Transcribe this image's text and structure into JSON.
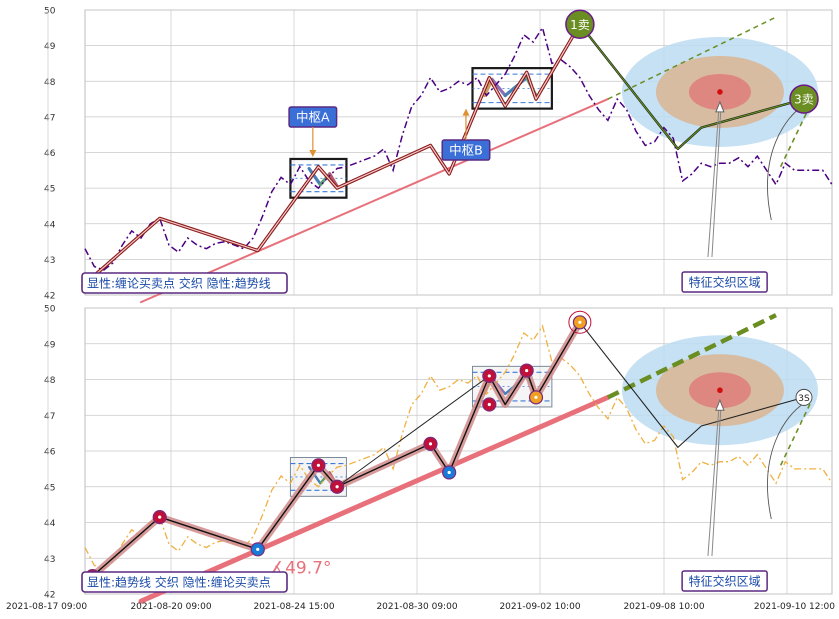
{
  "chart_data": {
    "type": "line",
    "x_ticks": [
      "2021-08-17 09:00",
      "2021-08-20 09:00",
      "2021-08-24 15:00",
      "2021-08-30 09:00",
      "2021-09-02 10:00",
      "2021-09-08 10:00",
      "2021-09-10 12:00"
    ],
    "y_ticks": [
      42,
      43,
      44,
      45,
      46,
      47,
      48,
      49,
      50
    ],
    "ylim": [
      42,
      50
    ],
    "grid": true,
    "panels": [
      {
        "legend_text": "显性:缠论买卖点 交织 隐性:趋势线",
        "pivot_labels": [
          "中枢A",
          "中枢B"
        ],
        "signal_labels": [
          "1卖",
          "3卖"
        ],
        "region_label": "特征交织区域"
      },
      {
        "legend_text": "显性:趋势线 交织 隐性:缠论买卖点",
        "angle_label": "∡49.7°",
        "signal_labels": [
          "3S"
        ],
        "region_label": "特征交织区域"
      }
    ],
    "price_series": {
      "x_index": [
        0,
        1,
        2,
        3,
        4,
        5,
        6,
        7,
        8,
        9,
        10,
        11,
        12,
        13,
        14,
        15,
        16,
        17,
        18,
        19,
        20,
        21,
        22,
        23,
        24,
        25,
        26,
        27,
        28,
        29,
        30,
        31,
        32,
        33,
        34,
        35,
        36,
        37,
        38,
        39,
        40,
        41,
        42,
        43,
        44,
        45,
        46,
        47,
        48,
        49,
        50,
        51,
        52,
        53,
        54,
        55,
        56,
        57,
        58,
        59,
        60,
        61,
        62,
        63,
        64,
        65,
        66,
        67,
        68,
        69,
        70,
        71,
        72,
        73,
        74,
        75,
        76,
        77,
        78,
        79,
        80
      ],
      "values": [
        43.3,
        42.8,
        42.7,
        42.9,
        43.4,
        43.8,
        43.6,
        44.0,
        44.15,
        43.4,
        43.2,
        43.6,
        43.4,
        43.3,
        43.45,
        43.5,
        43.4,
        43.3,
        43.6,
        44.2,
        44.9,
        45.3,
        45.1,
        45.6,
        45.2,
        45.0,
        45.3,
        45.55,
        45.6,
        45.7,
        45.8,
        45.9,
        46.1,
        45.5,
        46.5,
        47.3,
        47.6,
        48.1,
        47.7,
        47.8,
        48.0,
        47.9,
        48.1,
        47.6,
        47.9,
        48.2,
        48.7,
        49.3,
        49.1,
        49.5,
        48.5,
        48.6,
        48.4,
        48.1,
        47.6,
        47.2,
        46.9,
        47.5,
        47.2,
        46.6,
        46.2,
        46.3,
        46.7,
        46.4,
        45.2,
        45.4,
        45.7,
        45.6,
        45.7,
        45.7,
        45.85,
        45.6,
        45.9,
        45.5,
        45.1,
        45.7,
        45.5,
        45.5,
        45.5,
        45.5,
        45.1
      ]
    },
    "stroke_points": [
      {
        "x": 0.8,
        "y": 42.5
      },
      {
        "x": 8.0,
        "y": 44.15
      },
      {
        "x": 18.5,
        "y": 43.25
      },
      {
        "x": 25.0,
        "y": 45.6
      },
      {
        "x": 27.0,
        "y": 45.0
      },
      {
        "x": 37.0,
        "y": 46.2
      },
      {
        "x": 39.0,
        "y": 45.4
      },
      {
        "x": 43.3,
        "y": 48.1
      },
      {
        "x": 45.0,
        "y": 47.3
      },
      {
        "x": 47.3,
        "y": 48.25
      },
      {
        "x": 48.3,
        "y": 47.5
      },
      {
        "x": 53.0,
        "y": 49.6
      }
    ],
    "projection_points": [
      {
        "x": 53.0,
        "y": 49.6
      },
      {
        "x": 63.5,
        "y": 46.1
      },
      {
        "x": 66.0,
        "y": 46.7
      },
      {
        "x": 77.0,
        "y": 47.5
      }
    ],
    "pivots": [
      {
        "name": "中枢A",
        "x0": 22.0,
        "x1": 28.0,
        "ymin": 44.9,
        "ymax": 45.65
      },
      {
        "name": "中枢B",
        "x0": 41.5,
        "x1": 50.0,
        "ymin": 47.4,
        "ymax": 48.2
      }
    ],
    "trendline": {
      "x0": 6.0,
      "y0": 41.8,
      "x1": 56.0,
      "y1": 47.5
    },
    "trendline_ext": {
      "x0": 56.0,
      "y0": 47.5,
      "x1": 74.0,
      "y1": 49.8
    },
    "trendline_slope_deg": 49.7,
    "signals": [
      {
        "label": "1卖",
        "x": 53.0,
        "y": 49.6
      },
      {
        "label": "3卖",
        "x": 77.0,
        "y": 47.5
      }
    ],
    "region_center": {
      "x": 68.0,
      "y": 47.7
    },
    "colors": {
      "grid": "#c8c8c8",
      "price_dash_top": "#4b0082",
      "price_dash_bottom": "#f0b040",
      "trend": "#e8707a",
      "stroke_outline": "#8b1a1a",
      "pivot_box": "#1a1a1a",
      "signal_green": "#6b8e23",
      "region_outer": "#bcdcf2",
      "region_mid": "#d8b898",
      "region_inner": "#e07878",
      "label_blue_bg": "#3a6fd8",
      "label_border": "#5a2a82"
    }
  }
}
